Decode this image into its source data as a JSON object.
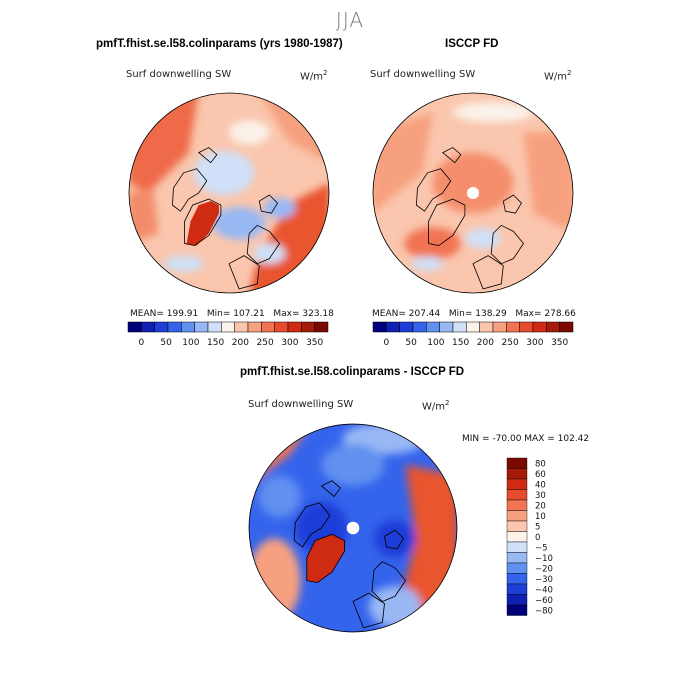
{
  "figure": {
    "title": "JJA"
  },
  "colors": {
    "diverging_scale": [
      "#00007a",
      "#1020b4",
      "#1e3ed8",
      "#3564ec",
      "#6090f0",
      "#98b8f4",
      "#cfe0f8",
      "#fbf2ea",
      "#fac6ad",
      "#f7a07f",
      "#f17352",
      "#e84a2c",
      "#cf2a12",
      "#a51a08",
      "#7a0a00"
    ],
    "land_outline": "#000000"
  },
  "panels": [
    {
      "title": "pmfT.fhist.se.l58.colinparams (yrs 1980-1987)",
      "field_label": "Surf downwelling SW",
      "units_label": "W/m",
      "units_exp": "2",
      "stats": {
        "mean_label": "MEAN=",
        "mean": "199.91",
        "min_label": "Min=",
        "min": "107.21",
        "max_label": "Max=",
        "max": "323.18"
      },
      "colorbar_ticks": [
        "0",
        "50",
        "100",
        "150",
        "200",
        "250",
        "300",
        "350"
      ]
    },
    {
      "title": "ISCCP FD",
      "field_label": "Surf downwelling SW",
      "units_label": "W/m",
      "units_exp": "2",
      "stats": {
        "mean_label": "MEAN=",
        "mean": "207.44",
        "min_label": "Min=",
        "min": "138.29",
        "max_label": "Max=",
        "max": "278.66"
      },
      "colorbar_ticks": [
        "0",
        "50",
        "100",
        "150",
        "200",
        "250",
        "300",
        "350"
      ]
    },
    {
      "title": "pmfT.fhist.se.l58.colinparams - ISCCP FD",
      "field_label": "Surf downwelling SW",
      "units_label": "W/m",
      "units_exp": "2",
      "stats_text": "MIN = -70.00  MAX = 102.42",
      "colorbar_levels": [
        "80",
        "60",
        "40",
        "30",
        "20",
        "10",
        "5",
        "0",
        "-5",
        "-10",
        "-20",
        "-30",
        "-40",
        "-60",
        "-80"
      ]
    }
  ],
  "chart_data": [
    {
      "type": "heatmap",
      "projection": "north polar stereographic",
      "title": "pmfT.fhist.se.l58.colinparams (yrs 1980-1987)",
      "variable": "Surf downwelling SW",
      "units": "W/m2",
      "season": "JJA",
      "mean": 199.91,
      "min": 107.21,
      "max": 323.18,
      "colorbar_ticks": [
        0,
        50,
        100,
        150,
        200,
        250,
        300,
        350
      ]
    },
    {
      "type": "heatmap",
      "projection": "north polar stereographic",
      "title": "ISCCP FD",
      "variable": "Surf downwelling SW",
      "units": "W/m2",
      "season": "JJA",
      "mean": 207.44,
      "min": 138.29,
      "max": 278.66,
      "colorbar_ticks": [
        0,
        50,
        100,
        150,
        200,
        250,
        300,
        350
      ]
    },
    {
      "type": "heatmap",
      "projection": "north polar stereographic",
      "title": "pmfT.fhist.se.l58.colinparams - ISCCP FD",
      "variable": "Surf downwelling SW",
      "units": "W/m2",
      "season": "JJA",
      "min": -70.0,
      "max": 102.42,
      "colorbar_levels": [
        80,
        60,
        40,
        30,
        20,
        10,
        5,
        0,
        -5,
        -10,
        -20,
        -30,
        -40,
        -60,
        -80
      ]
    }
  ]
}
